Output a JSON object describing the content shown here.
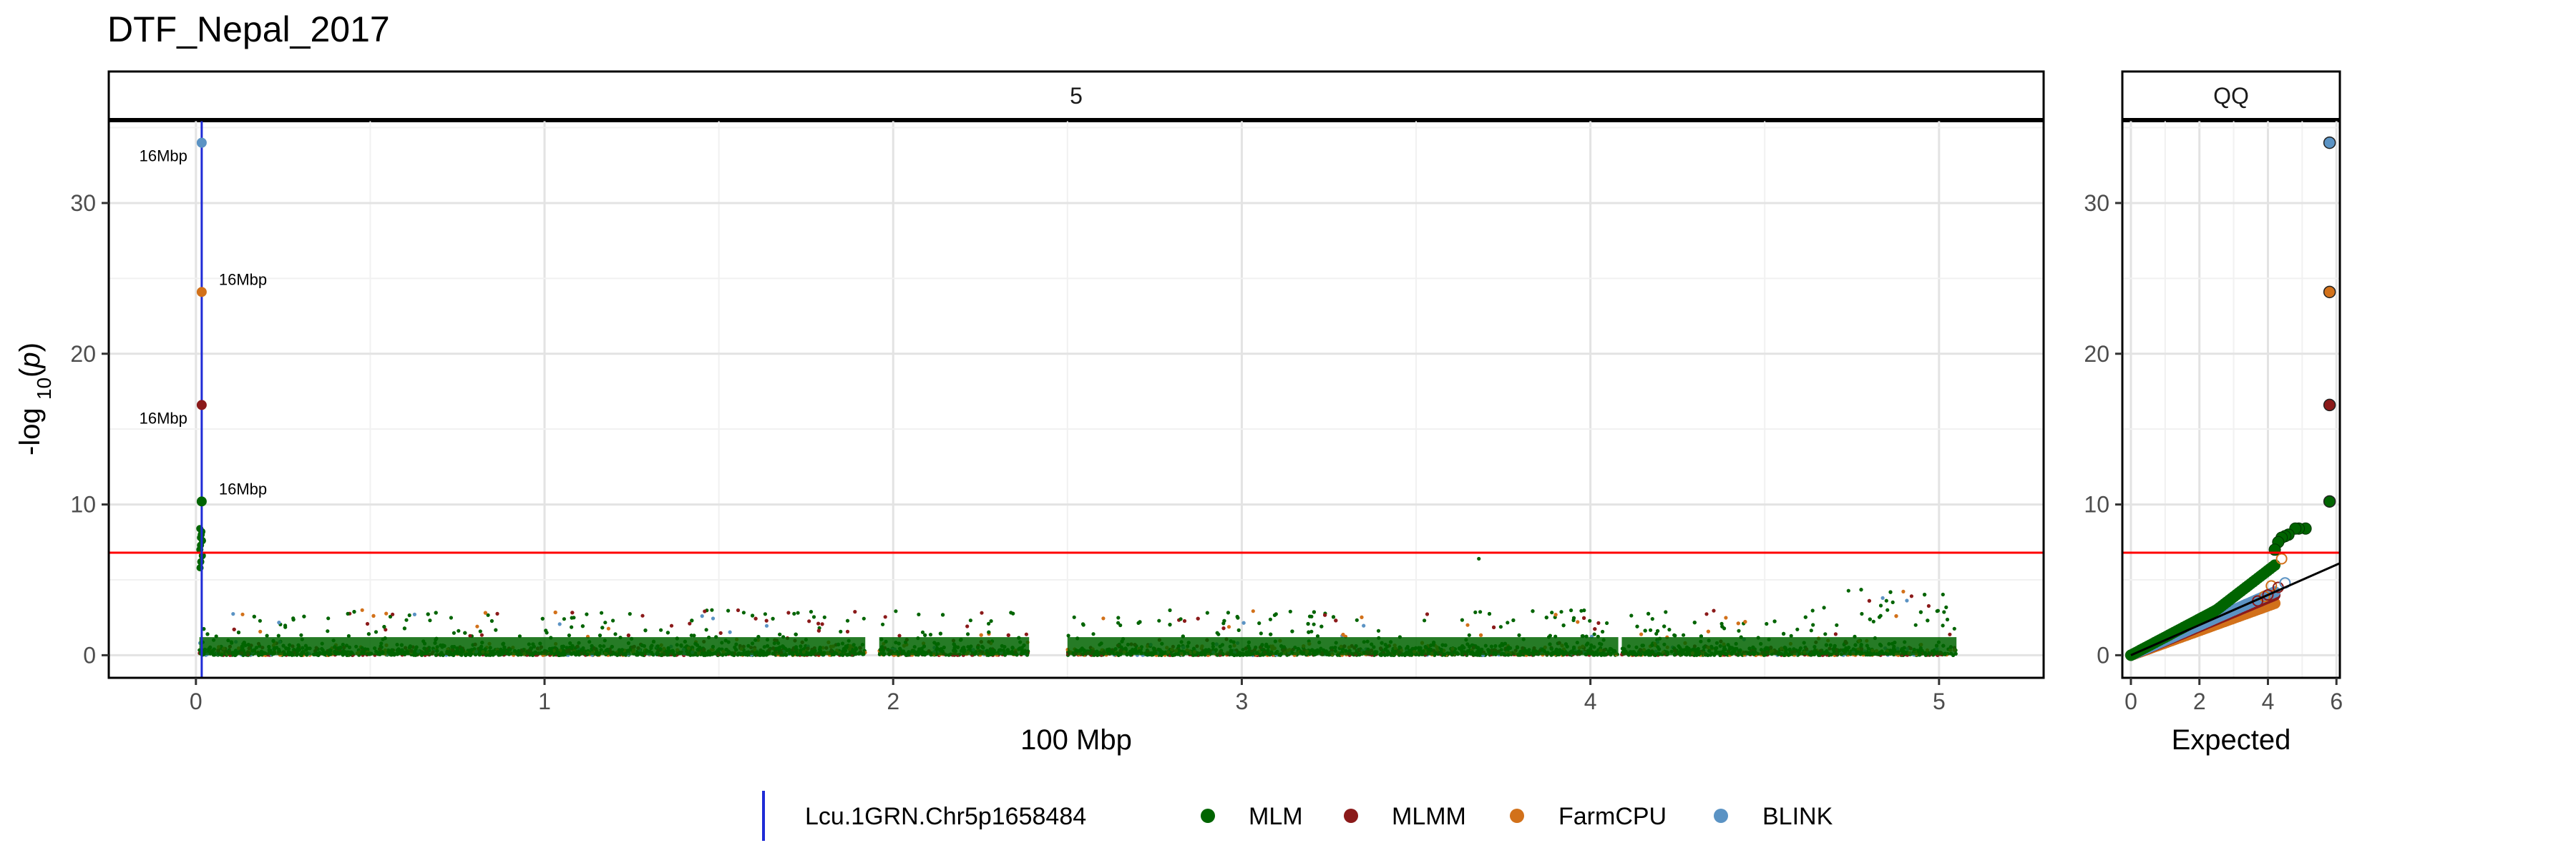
{
  "title": "DTF_Nepal_2017",
  "colors": {
    "MLM": "#006400",
    "MLMM": "#8B1A1A",
    "FarmCPU": "#D2711A",
    "BLINK": "#5B93C4",
    "threshold": "#FF0000",
    "marker_line": "#1F2BD6",
    "qq_line": "#000000"
  },
  "chart_data": [
    {
      "type": "scatter",
      "panel": "manhattan",
      "strip_label": "5",
      "xlabel": "100 Mbp",
      "ylabel": "-log 10(p)",
      "xlim": [
        -0.25,
        5.3
      ],
      "ylim": [
        -1.5,
        35.5
      ],
      "x_ticks": [
        "0",
        "1",
        "2",
        "3",
        "4",
        "5"
      ],
      "y_ticks": [
        "0",
        "10",
        "20",
        "30"
      ],
      "grid": true,
      "threshold": 6.8,
      "marker_position": 0.0166,
      "chromosome_end": 5.05,
      "gaps": [
        [
          1.92,
          1.96
        ],
        [
          2.39,
          2.5
        ],
        [
          4.08,
          4.09
        ]
      ],
      "peak_points": [
        {
          "series": "BLINK",
          "x": 0.0166,
          "y": 34.0,
          "label": "16Mbp"
        },
        {
          "series": "FarmCPU",
          "x": 0.0166,
          "y": 24.1,
          "label": "16Mbp"
        },
        {
          "series": "MLMM",
          "x": 0.0166,
          "y": 16.6,
          "label": "16Mbp"
        },
        {
          "series": "MLM",
          "x": 0.0166,
          "y": 10.2,
          "label": "16Mbp"
        }
      ],
      "mlm_near_peak": [
        8.4,
        8.2,
        8.0,
        7.8,
        7.6,
        7.3,
        7.0,
        6.6,
        6.2,
        5.8
      ],
      "isolated_points": [
        {
          "series": "MLM",
          "x": 3.68,
          "y": 6.4
        }
      ],
      "series": [
        {
          "name": "MLM"
        },
        {
          "name": "MLMM"
        },
        {
          "name": "FarmCPU"
        },
        {
          "name": "BLINK"
        }
      ]
    },
    {
      "type": "scatter",
      "panel": "qq",
      "strip_label": "QQ",
      "xlabel": "Expected",
      "ylabel": "",
      "xlim": [
        -0.25,
        6.1
      ],
      "ylim": [
        -1.5,
        35.5
      ],
      "x_ticks": [
        "0",
        "2",
        "4",
        "6"
      ],
      "y_ticks": [
        "0",
        "10",
        "20",
        "30"
      ],
      "grid": true,
      "threshold": 6.8,
      "reference_line": {
        "slope": 1,
        "intercept": 0
      },
      "top_points": [
        {
          "series": "BLINK",
          "x": 5.8,
          "y": 34.0
        },
        {
          "series": "FarmCPU",
          "x": 5.8,
          "y": 24.1
        },
        {
          "series": "MLMM",
          "x": 5.8,
          "y": 16.6
        },
        {
          "series": "MLM",
          "x": 5.8,
          "y": 10.2
        }
      ],
      "mlm_upper_tail": [
        {
          "x": 5.1,
          "y": 8.4
        },
        {
          "x": 4.9,
          "y": 8.4
        },
        {
          "x": 4.8,
          "y": 8.4
        },
        {
          "x": 4.6,
          "y": 8.0
        },
        {
          "x": 4.5,
          "y": 7.9
        },
        {
          "x": 4.4,
          "y": 7.8
        },
        {
          "x": 4.3,
          "y": 7.5
        },
        {
          "x": 4.2,
          "y": 7.0
        }
      ]
    }
  ],
  "legend": {
    "placement": "bottom",
    "line_label": "Lcu.1GRN.Chr5p1658484",
    "items": [
      "MLM",
      "MLMM",
      "FarmCPU",
      "BLINK"
    ]
  }
}
